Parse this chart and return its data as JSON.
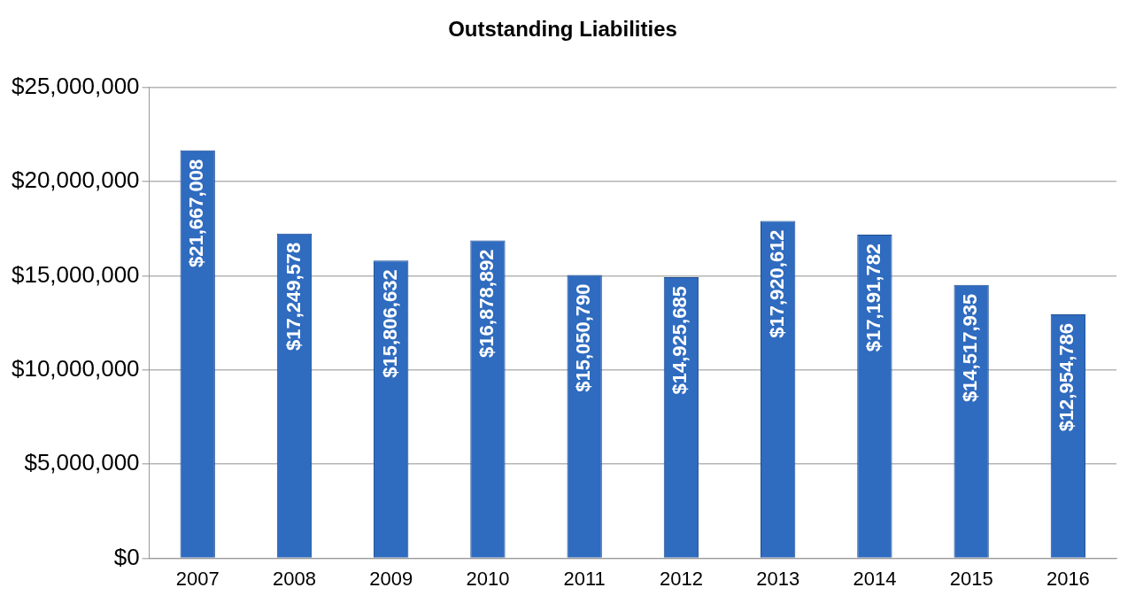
{
  "chart_data": {
    "type": "bar",
    "title": "Outstanding Liabilities",
    "categories": [
      "2007",
      "2008",
      "2009",
      "2010",
      "2011",
      "2012",
      "2013",
      "2014",
      "2015",
      "2016"
    ],
    "values": [
      21667008,
      17249578,
      15806632,
      16878892,
      15050790,
      14925685,
      17920612,
      17191782,
      14517935,
      12954786
    ],
    "value_labels": [
      "$21,667,008",
      "$17,249,578",
      "$15,806,632",
      "$16,878,892",
      "$15,050,790",
      "$14,925,685",
      "$17,920,612",
      "$17,191,782",
      "$14,517,935",
      "$12,954,786"
    ],
    "color": "#2f6bbf",
    "ylim": [
      0,
      25000000
    ],
    "yticks": [
      {
        "value": 0,
        "label": "$0"
      },
      {
        "value": 5000000,
        "label": "$5,000,000"
      },
      {
        "value": 10000000,
        "label": "$10,000,000"
      },
      {
        "value": 15000000,
        "label": "$15,000,000"
      },
      {
        "value": 20000000,
        "label": "$20,000,000"
      },
      {
        "value": 25000000,
        "label": "$25,000,000"
      }
    ],
    "grid": "y"
  }
}
